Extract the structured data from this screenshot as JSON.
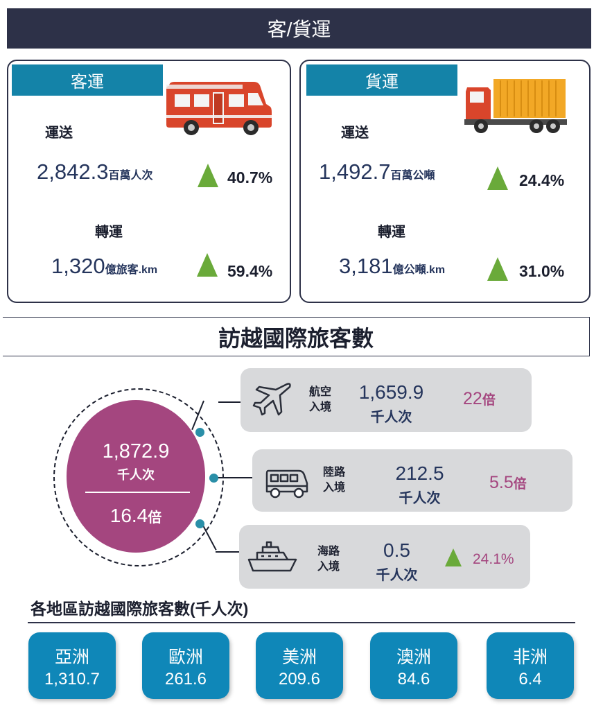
{
  "header": {
    "title": "客/貨運"
  },
  "passenger": {
    "tag": "客運",
    "transport_label": "運送",
    "transport_value": "2,842.3",
    "transport_unit": "百萬人次",
    "transport_pct": "40.7%",
    "turnover_label": "轉運",
    "turnover_value": "1,320",
    "turnover_unit": "億旅客.km",
    "turnover_pct": "59.4%"
  },
  "freight": {
    "tag": "貨運",
    "transport_label": "運送",
    "transport_value": "1,492.7",
    "transport_unit": "百萬公噸",
    "transport_pct": "24.4%",
    "turnover_label": "轉運",
    "turnover_value": "3,181",
    "turnover_unit": "億公噸.km",
    "turnover_pct": "31.0%"
  },
  "visitors": {
    "title": "訪越國際旅客數",
    "total_value": "1,872.9",
    "total_unit": "千人次",
    "total_multiple": "16.4",
    "total_multiple_suffix": "倍",
    "air": {
      "label_1": "航空",
      "label_2": "入境",
      "value": "1,659.9",
      "unit": "千人次",
      "multiple": "22",
      "suffix": "倍"
    },
    "land": {
      "label_1": "陸路",
      "label_2": "入境",
      "value": "212.5",
      "unit": "千人次",
      "multiple": "5.5",
      "suffix": "倍"
    },
    "sea": {
      "label_1": "海路",
      "label_2": "入境",
      "value": "0.5",
      "unit": "千人次",
      "pct": "24.1%"
    }
  },
  "regions": {
    "title": "各地區訪越國際旅客數(千人次)",
    "items": [
      {
        "name": "亞洲",
        "value": "1,310.7"
      },
      {
        "name": "歐洲",
        "value": "261.6"
      },
      {
        "name": "美洲",
        "value": "209.6"
      },
      {
        "name": "澳洲",
        "value": "84.6"
      },
      {
        "name": "非洲",
        "value": "6.4"
      }
    ]
  },
  "colors": {
    "header_bg": "#2d3148",
    "tag_bg": "#1483a8",
    "up_arrow": "#6aaa3a",
    "circle": "#a4467f",
    "region_bg": "#0f87b8",
    "card_bg": "#d8d9db"
  },
  "icons": [
    "bus-icon",
    "truck-icon",
    "airplane-icon",
    "van-icon",
    "ship-icon",
    "up-arrow-icon"
  ]
}
